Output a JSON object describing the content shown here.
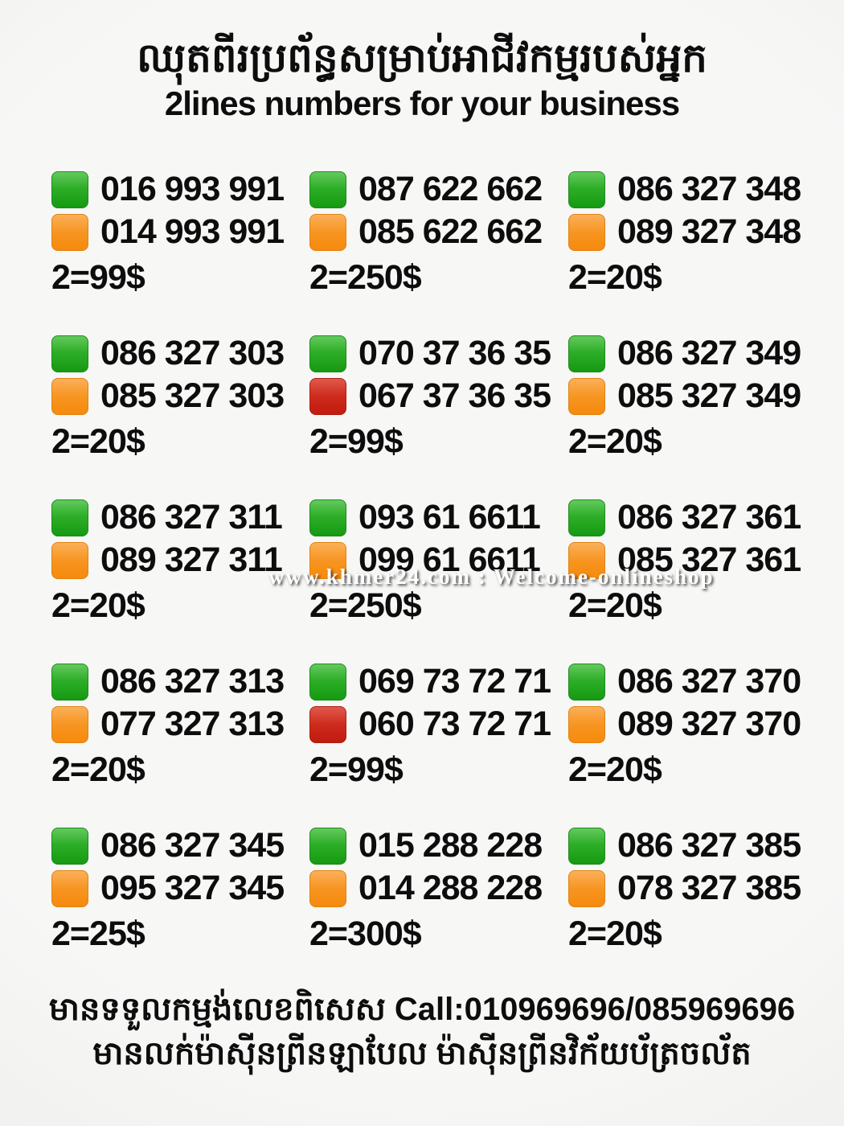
{
  "header": {
    "title_khmer": "ឈុតពីរប្រព័ន្ធសម្រាប់អាជីវកម្មរបស់អ្នក",
    "subtitle": "2lines numbers for your business"
  },
  "watermark": {
    "text": "www.khmer24.com : Welcome-onlineshop"
  },
  "colors": {
    "green": "#1fa41b",
    "orange": "#f7941d",
    "red": "#c72114",
    "background": "#f2f2f1",
    "text": "#0d0d0d",
    "watermark_text": "#ffffff"
  },
  "listings": [
    {
      "lines": [
        {
          "color": "green",
          "number": "016 993 991"
        },
        {
          "color": "orange",
          "number": "014 993 991"
        }
      ],
      "price": "2=99$"
    },
    {
      "lines": [
        {
          "color": "green",
          "number": "087 622 662"
        },
        {
          "color": "orange",
          "number": "085 622 662"
        }
      ],
      "price": "2=250$"
    },
    {
      "lines": [
        {
          "color": "green",
          "number": "086 327 348"
        },
        {
          "color": "orange",
          "number": "089 327 348"
        }
      ],
      "price": "2=20$"
    },
    {
      "lines": [
        {
          "color": "green",
          "number": "086 327 303"
        },
        {
          "color": "orange",
          "number": "085 327 303"
        }
      ],
      "price": "2=20$"
    },
    {
      "lines": [
        {
          "color": "green",
          "number": "070 37 36 35"
        },
        {
          "color": "red",
          "number": "067 37 36 35"
        }
      ],
      "price": "2=99$"
    },
    {
      "lines": [
        {
          "color": "green",
          "number": "086 327 349"
        },
        {
          "color": "orange",
          "number": "085 327 349"
        }
      ],
      "price": "2=20$"
    },
    {
      "lines": [
        {
          "color": "green",
          "number": "086 327 311"
        },
        {
          "color": "orange",
          "number": "089 327 311"
        }
      ],
      "price": "2=20$"
    },
    {
      "lines": [
        {
          "color": "green",
          "number": "093 61 6611"
        },
        {
          "color": "orange",
          "number": "099 61 6611"
        }
      ],
      "price": "2=250$"
    },
    {
      "lines": [
        {
          "color": "green",
          "number": "086 327 361"
        },
        {
          "color": "orange",
          "number": "085 327 361"
        }
      ],
      "price": "2=20$"
    },
    {
      "lines": [
        {
          "color": "green",
          "number": "086 327 313"
        },
        {
          "color": "orange",
          "number": "077 327 313"
        }
      ],
      "price": "2=20$"
    },
    {
      "lines": [
        {
          "color": "green",
          "number": "069 73 72 71"
        },
        {
          "color": "red",
          "number": "060 73 72 71"
        }
      ],
      "price": "2=99$"
    },
    {
      "lines": [
        {
          "color": "green",
          "number": "086 327 370"
        },
        {
          "color": "orange",
          "number": "089 327 370"
        }
      ],
      "price": "2=20$"
    },
    {
      "lines": [
        {
          "color": "green",
          "number": "086 327 345"
        },
        {
          "color": "orange",
          "number": "095 327 345"
        }
      ],
      "price": "2=25$"
    },
    {
      "lines": [
        {
          "color": "green",
          "number": "015 288 228"
        },
        {
          "color": "orange",
          "number": "014 288 228"
        }
      ],
      "price": "2=300$"
    },
    {
      "lines": [
        {
          "color": "green",
          "number": "086 327 385"
        },
        {
          "color": "orange",
          "number": "078 327 385"
        }
      ],
      "price": "2=20$"
    }
  ],
  "footer": {
    "line1": "មានទទួលកម្មង់លេខពិសេស Call:010969696/085969696",
    "line2": "មានលក់ម៉ាស៊ីនព្រីនឡាបែល ម៉ាស៊ីនព្រីនវិក័យប័ត្រចល័ត"
  }
}
